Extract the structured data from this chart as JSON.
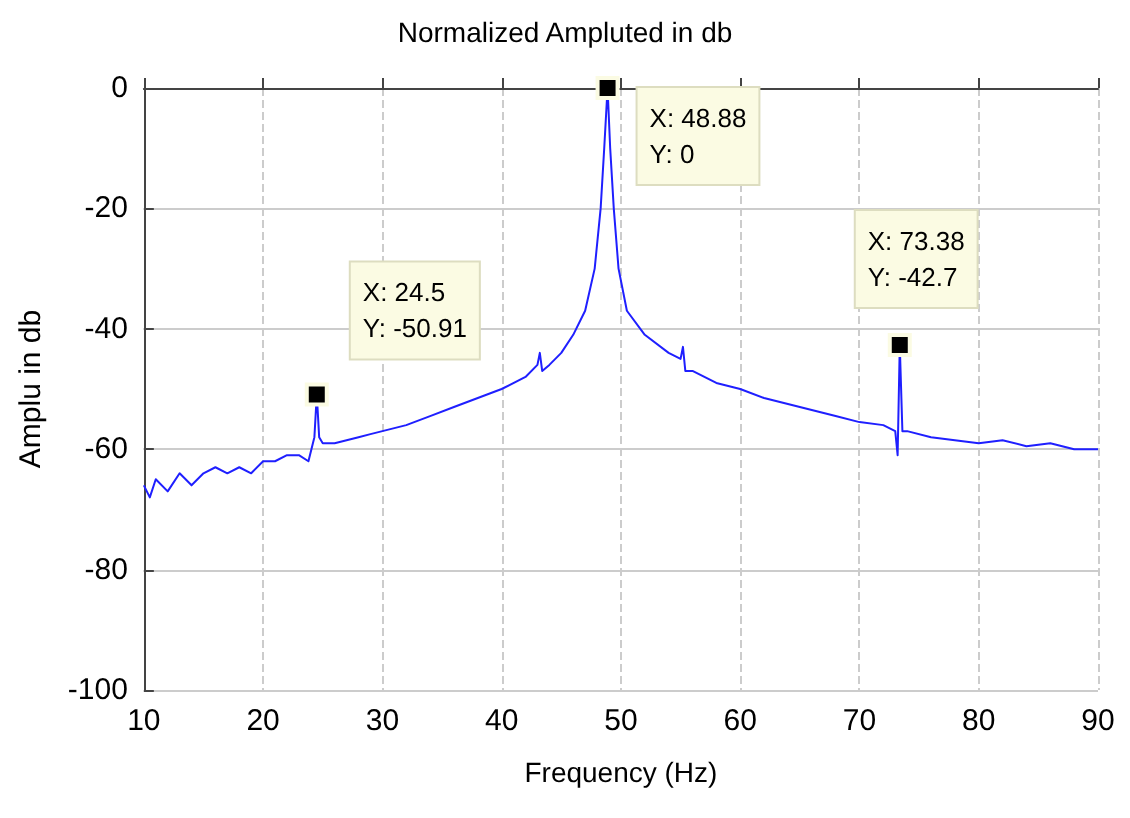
{
  "chart_data": {
    "type": "line",
    "title": "Normalized Ampluted in db",
    "xlabel": "Frequency (Hz)",
    "ylabel": "Amplu in db",
    "x": [
      10,
      10.5,
      11,
      12,
      13,
      14,
      15,
      16,
      17,
      18,
      19,
      20,
      21,
      22,
      23,
      23.8,
      24.3,
      24.5,
      24.7,
      25,
      26,
      27,
      28,
      29,
      30,
      32,
      34,
      36,
      38,
      40,
      42,
      43,
      43.2,
      43.4,
      44,
      45,
      46,
      47,
      47.8,
      48.3,
      48.6,
      48.88,
      49.1,
      49.4,
      49.8,
      50.5,
      52,
      54,
      55,
      55.2,
      55.4,
      56,
      58,
      60,
      62,
      64,
      66,
      68,
      70,
      72,
      73,
      73.2,
      73.38,
      73.6,
      74,
      76,
      78,
      80,
      82,
      84,
      86,
      88,
      90
    ],
    "series": [
      {
        "color": "#1f1fff",
        "values": [
          -66,
          -68,
          -65,
          -67,
          -64,
          -66,
          -64,
          -63,
          -64,
          -63,
          -64,
          -62,
          -62,
          -61,
          -61,
          -62,
          -58,
          -50.91,
          -58,
          -59,
          -59,
          -58.5,
          -58,
          -57.5,
          -57,
          -56,
          -54.5,
          -53,
          -51.5,
          -50,
          -48,
          -46,
          -44,
          -47,
          -46,
          -44,
          -41,
          -37,
          -30,
          -20,
          -10,
          0,
          -10,
          -20,
          -30,
          -37,
          -41,
          -44,
          -45,
          -43,
          -47,
          -47,
          -49,
          -50,
          -51.5,
          -52.5,
          -53.5,
          -54.5,
          -55.5,
          -56,
          -57,
          -61,
          -42.7,
          -57,
          -57,
          -58,
          -58.5,
          -59,
          -58.5,
          -59.5,
          -59,
          -60,
          -60
        ]
      }
    ],
    "xlim": [
      10,
      90
    ],
    "xticks": [
      10,
      20,
      30,
      40,
      50,
      60,
      70,
      80,
      90
    ],
    "ylim": [
      -100,
      0
    ],
    "yticks": [
      -100,
      -80,
      -60,
      -40,
      -20,
      0
    ],
    "grid": true,
    "marker": "none",
    "line_style": "solid",
    "annotations": [
      {
        "text": "X: 24.5\nY: -50.91",
        "x": 24.5,
        "y": -50.91
      },
      {
        "text": "X: 48.88\nY: 0",
        "x": 48.88,
        "y": 0
      },
      {
        "text": "X: 73.38\nY: -42.7",
        "x": 73.38,
        "y": -42.7
      }
    ]
  }
}
